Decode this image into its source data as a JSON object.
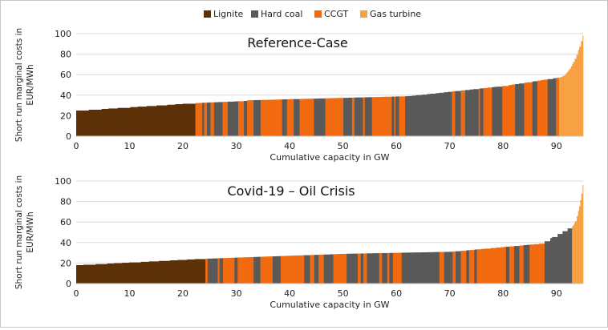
{
  "legend": [
    {
      "label": "Lignite",
      "color": "#5c3108"
    },
    {
      "label": "Hard coal",
      "color": "#595959"
    },
    {
      "label": "CCGT",
      "color": "#f26a0f"
    },
    {
      "label": "Gas turbine",
      "color": "#f7a142"
    }
  ],
  "chart_data": [
    {
      "type": "bar",
      "title": "Reference-Case",
      "xlabel": "Cumulative capacity in GW",
      "ylabel": "Short run marginal costs in EUR/MWh",
      "xlim": [
        0,
        95
      ],
      "ylim": [
        0,
        100
      ],
      "xticks": [
        0,
        10,
        20,
        30,
        40,
        50,
        60,
        70,
        80,
        90
      ],
      "yticks": [
        0,
        20,
        40,
        60,
        80,
        100
      ],
      "grid": true,
      "legend_position": "top",
      "segments": [
        {
          "x0": 0,
          "x1": 21,
          "y0": 25,
          "y1": 32,
          "fuel": "Lignite"
        },
        {
          "x0": 21,
          "x1": 32,
          "y0": 32,
          "y1": 34.5,
          "fuel": "Hard coal"
        },
        {
          "x0": 32,
          "x1": 62,
          "y0": 35,
          "y1": 39,
          "fuel": "CCGT"
        },
        {
          "x0": 62,
          "x1": 80,
          "y0": 39,
          "y1": 49,
          "fuel": "Hard coal"
        },
        {
          "x0": 80,
          "x1": 90,
          "y0": 49,
          "y1": 57,
          "fuel": "CCGT"
        },
        {
          "x0": 90,
          "x1": 95,
          "y0": 57,
          "y1": 100,
          "fuel": "Gas turbine"
        }
      ]
    },
    {
      "type": "bar",
      "title": "Covid-19 – Oil Crisis",
      "xlabel": "Cumulative capacity in GW",
      "ylabel": "Short run marginal costs in EUR/MWh",
      "xlim": [
        0,
        95
      ],
      "ylim": [
        0,
        100
      ],
      "xticks": [
        0,
        10,
        20,
        30,
        40,
        50,
        60,
        70,
        80,
        90
      ],
      "yticks": [
        0,
        20,
        40,
        60,
        80,
        100
      ],
      "grid": true,
      "segments": [
        {
          "x0": 0,
          "x1": 22.7,
          "y0": 18,
          "y1": 24,
          "fuel": "Lignite"
        },
        {
          "x0": 22.7,
          "x1": 50,
          "y0": 24,
          "y1": 29,
          "fuel": "CCGT"
        },
        {
          "x0": 50,
          "x1": 70,
          "y0": 29,
          "y1": 31,
          "fuel": "Hard coal"
        },
        {
          "x0": 70,
          "x1": 87,
          "y0": 31,
          "y1": 39,
          "fuel": "CCGT"
        },
        {
          "x0": 87,
          "x1": 92.5,
          "y0": 39,
          "y1": 55,
          "fuel": "Hard coal"
        },
        {
          "x0": 92.5,
          "x1": 95,
          "y0": 55,
          "y1": 100,
          "fuel": "Gas turbine"
        }
      ]
    }
  ]
}
